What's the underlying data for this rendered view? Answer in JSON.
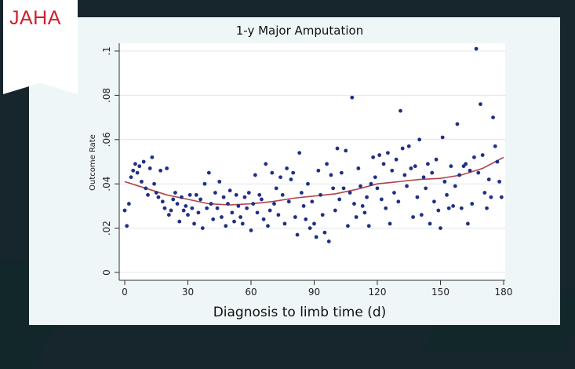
{
  "journal": {
    "name": "JAHA",
    "color": "#d0202e"
  },
  "chart_data": {
    "type": "scatter",
    "title": "1-y Major Amputation",
    "xlabel": "Diagnosis to limb time (d)",
    "ylabel": "Outcome Rate",
    "xlim": [
      0,
      180
    ],
    "ylim": [
      0,
      0.1
    ],
    "x_ticks": [
      0,
      30,
      60,
      90,
      120,
      150,
      180
    ],
    "x_tick_labels": [
      "0",
      "30",
      "60",
      "90",
      "120",
      "150",
      "180"
    ],
    "y_ticks": [
      0,
      0.02,
      0.04,
      0.06,
      0.08,
      0.1
    ],
    "y_tick_labels": [
      "0",
      ".02",
      ".04",
      ".06",
      ".08",
      ".1"
    ],
    "grid": true,
    "marker_color": "#1f2f86",
    "fit_color": "#b0454c",
    "series": [
      {
        "type": "scatter",
        "points": [
          [
            0,
            0.028
          ],
          [
            1,
            0.021
          ],
          [
            2,
            0.031
          ],
          [
            3,
            0.043
          ],
          [
            4,
            0.046
          ],
          [
            5,
            0.049
          ],
          [
            6,
            0.045
          ],
          [
            7,
            0.048
          ],
          [
            8,
            0.041
          ],
          [
            9,
            0.05
          ],
          [
            10,
            0.038
          ],
          [
            11,
            0.035
          ],
          [
            12,
            0.047
          ],
          [
            13,
            0.052
          ],
          [
            14,
            0.04
          ],
          [
            15,
            0.036
          ],
          [
            16,
            0.034
          ],
          [
            17,
            0.046
          ],
          [
            18,
            0.032
          ],
          [
            19,
            0.029
          ],
          [
            20,
            0.047
          ],
          [
            21,
            0.026
          ],
          [
            22,
            0.028
          ],
          [
            23,
            0.033
          ],
          [
            24,
            0.036
          ],
          [
            25,
            0.031
          ],
          [
            26,
            0.023
          ],
          [
            27,
            0.034
          ],
          [
            28,
            0.028
          ],
          [
            29,
            0.03
          ],
          [
            30,
            0.026
          ],
          [
            31,
            0.035
          ],
          [
            32,
            0.029
          ],
          [
            33,
            0.022
          ],
          [
            34,
            0.035
          ],
          [
            35,
            0.027
          ],
          [
            36,
            0.033
          ],
          [
            37,
            0.02
          ],
          [
            38,
            0.04
          ],
          [
            39,
            0.029
          ],
          [
            40,
            0.045
          ],
          [
            41,
            0.031
          ],
          [
            42,
            0.024
          ],
          [
            43,
            0.036
          ],
          [
            44,
            0.029
          ],
          [
            45,
            0.041
          ],
          [
            46,
            0.025
          ],
          [
            47,
            0.034
          ],
          [
            48,
            0.021
          ],
          [
            49,
            0.031
          ],
          [
            50,
            0.037
          ],
          [
            51,
            0.027
          ],
          [
            52,
            0.023
          ],
          [
            53,
            0.035
          ],
          [
            54,
            0.03
          ],
          [
            55,
            0.025
          ],
          [
            56,
            0.022
          ],
          [
            57,
            0.034
          ],
          [
            58,
            0.029
          ],
          [
            59,
            0.036
          ],
          [
            60,
            0.019
          ],
          [
            61,
            0.031
          ],
          [
            62,
            0.044
          ],
          [
            63,
            0.027
          ],
          [
            64,
            0.035
          ],
          [
            65,
            0.033
          ],
          [
            66,
            0.024
          ],
          [
            67,
            0.049
          ],
          [
            68,
            0.021
          ],
          [
            69,
            0.028
          ],
          [
            70,
            0.045
          ],
          [
            71,
            0.031
          ],
          [
            72,
            0.038
          ],
          [
            73,
            0.026
          ],
          [
            74,
            0.043
          ],
          [
            75,
            0.035
          ],
          [
            76,
            0.022
          ],
          [
            77,
            0.047
          ],
          [
            78,
            0.032
          ],
          [
            79,
            0.042
          ],
          [
            80,
            0.045
          ],
          [
            81,
            0.025
          ],
          [
            82,
            0.017
          ],
          [
            83,
            0.054
          ],
          [
            84,
            0.036
          ],
          [
            85,
            0.03
          ],
          [
            86,
            0.024
          ],
          [
            87,
            0.04
          ],
          [
            88,
            0.02
          ],
          [
            89,
            0.032
          ],
          [
            90,
            0.022
          ],
          [
            91,
            0.016
          ],
          [
            92,
            0.046
          ],
          [
            93,
            0.035
          ],
          [
            94,
            0.026
          ],
          [
            95,
            0.018
          ],
          [
            96,
            0.049
          ],
          [
            97,
            0.014
          ],
          [
            98,
            0.044
          ],
          [
            99,
            0.038
          ],
          [
            100,
            0.028
          ],
          [
            101,
            0.056
          ],
          [
            102,
            0.033
          ],
          [
            103,
            0.045
          ],
          [
            104,
            0.038
          ],
          [
            105,
            0.055
          ],
          [
            106,
            0.021
          ],
          [
            107,
            0.036
          ],
          [
            108,
            0.079
          ],
          [
            109,
            0.031
          ],
          [
            110,
            0.025
          ],
          [
            111,
            0.047
          ],
          [
            112,
            0.039
          ],
          [
            113,
            0.03
          ],
          [
            114,
            0.027
          ],
          [
            115,
            0.034
          ],
          [
            116,
            0.021
          ],
          [
            117,
            0.04
          ],
          [
            118,
            0.052
          ],
          [
            119,
            0.043
          ],
          [
            120,
            0.038
          ],
          [
            121,
            0.053
          ],
          [
            122,
            0.033
          ],
          [
            123,
            0.049
          ],
          [
            124,
            0.029
          ],
          [
            125,
            0.054
          ],
          [
            126,
            0.022
          ],
          [
            127,
            0.046
          ],
          [
            128,
            0.036
          ],
          [
            129,
            0.051
          ],
          [
            130,
            0.032
          ],
          [
            131,
            0.073
          ],
          [
            132,
            0.056
          ],
          [
            133,
            0.044
          ],
          [
            134,
            0.039
          ],
          [
            135,
            0.057
          ],
          [
            136,
            0.047
          ],
          [
            137,
            0.025
          ],
          [
            138,
            0.048
          ],
          [
            139,
            0.034
          ],
          [
            140,
            0.06
          ],
          [
            141,
            0.026
          ],
          [
            142,
            0.043
          ],
          [
            143,
            0.038
          ],
          [
            144,
            0.049
          ],
          [
            145,
            0.022
          ],
          [
            146,
            0.045
          ],
          [
            147,
            0.032
          ],
          [
            148,
            0.051
          ],
          [
            149,
            0.028
          ],
          [
            150,
            0.02
          ],
          [
            151,
            0.061
          ],
          [
            152,
            0.041
          ],
          [
            153,
            0.035
          ],
          [
            154,
            0.029
          ],
          [
            155,
            0.048
          ],
          [
            156,
            0.03
          ],
          [
            157,
            0.039
          ],
          [
            158,
            0.067
          ],
          [
            159,
            0.044
          ],
          [
            160,
            0.029
          ],
          [
            161,
            0.048
          ],
          [
            162,
            0.049
          ],
          [
            163,
            0.022
          ],
          [
            164,
            0.046
          ],
          [
            165,
            0.031
          ],
          [
            166,
            0.052
          ],
          [
            167,
            0.101
          ],
          [
            168,
            0.045
          ],
          [
            169,
            0.076
          ],
          [
            170,
            0.053
          ],
          [
            171,
            0.036
          ],
          [
            172,
            0.029
          ],
          [
            173,
            0.042
          ],
          [
            174,
            0.034
          ],
          [
            175,
            0.07
          ],
          [
            176,
            0.057
          ],
          [
            177,
            0.05
          ],
          [
            178,
            0.041
          ],
          [
            179,
            0.034
          ]
        ]
      },
      {
        "type": "line",
        "name": "",
        "points": [
          [
            0,
            0.041
          ],
          [
            10,
            0.038
          ],
          [
            20,
            0.035
          ],
          [
            30,
            0.033
          ],
          [
            40,
            0.031
          ],
          [
            50,
            0.0305
          ],
          [
            60,
            0.031
          ],
          [
            70,
            0.032
          ],
          [
            80,
            0.0335
          ],
          [
            90,
            0.0345
          ],
          [
            100,
            0.0355
          ],
          [
            110,
            0.0375
          ],
          [
            120,
            0.04
          ],
          [
            130,
            0.041
          ],
          [
            140,
            0.042
          ],
          [
            150,
            0.0425
          ],
          [
            160,
            0.044
          ],
          [
            170,
            0.047
          ],
          [
            180,
            0.052
          ]
        ]
      }
    ]
  }
}
